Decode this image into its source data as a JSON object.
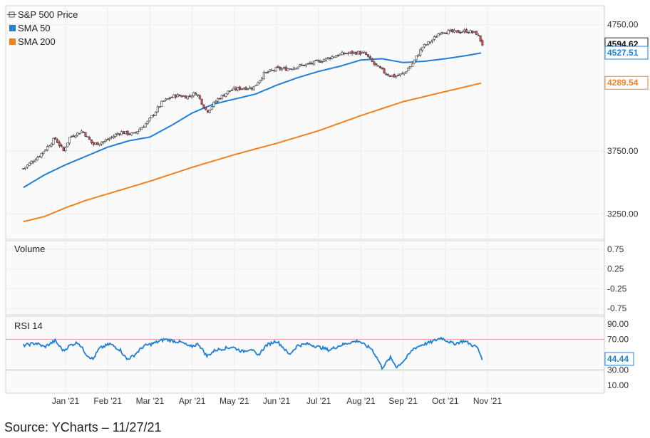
{
  "source": "Source: YCharts – 11/27/21",
  "chart_data": {
    "type": "candlestick",
    "x_tick_labels": [
      "Jan '21",
      "Feb '21",
      "Mar '21",
      "Apr '21",
      "May '21",
      "Jun '21",
      "Jul '21",
      "Aug '21",
      "Sep '21",
      "Oct '21",
      "Nov '21"
    ],
    "price_panel": {
      "y_ticks": [
        "4750.00",
        "3750.00",
        "3250.00"
      ],
      "ylim": [
        3050,
        4900
      ],
      "legend": [
        {
          "name": "S&P 500 Price",
          "icon": "crosshair-icon",
          "color": "#555555"
        },
        {
          "name": "SMA 50",
          "color": "#1f7fd8"
        },
        {
          "name": "SMA 200",
          "color": "#f0821e"
        }
      ],
      "last_values": {
        "price": "4594.62",
        "sma50": "4527.51",
        "sma200": "4289.54"
      },
      "up_color": "#ffffff",
      "down_color": "#e8484e",
      "price_anchors": [
        {
          "m": 0,
          "v": 3610
        },
        {
          "m": 0.4,
          "v": 3720
        },
        {
          "m": 0.75,
          "v": 3850
        },
        {
          "m": 0.95,
          "v": 3750
        },
        {
          "m": 1.1,
          "v": 3860
        },
        {
          "m": 1.4,
          "v": 3910
        },
        {
          "m": 1.65,
          "v": 3800
        },
        {
          "m": 1.95,
          "v": 3830
        },
        {
          "m": 2.3,
          "v": 3900
        },
        {
          "m": 2.6,
          "v": 3880
        },
        {
          "m": 2.95,
          "v": 3980
        },
        {
          "m": 3.3,
          "v": 4140
        },
        {
          "m": 3.6,
          "v": 4190
        },
        {
          "m": 3.9,
          "v": 4180
        },
        {
          "m": 4.1,
          "v": 4210
        },
        {
          "m": 4.35,
          "v": 4060
        },
        {
          "m": 4.6,
          "v": 4160
        },
        {
          "m": 4.9,
          "v": 4230
        },
        {
          "m": 5.2,
          "v": 4250
        },
        {
          "m": 5.45,
          "v": 4250
        },
        {
          "m": 5.7,
          "v": 4360
        },
        {
          "m": 6,
          "v": 4400
        },
        {
          "m": 6.25,
          "v": 4400
        },
        {
          "m": 6.5,
          "v": 4420
        },
        {
          "m": 6.8,
          "v": 4440
        },
        {
          "m": 7.1,
          "v": 4470
        },
        {
          "m": 7.35,
          "v": 4500
        },
        {
          "m": 7.6,
          "v": 4520
        },
        {
          "m": 7.9,
          "v": 4530
        },
        {
          "m": 8.1,
          "v": 4520
        },
        {
          "m": 8.3,
          "v": 4440
        },
        {
          "m": 8.6,
          "v": 4360
        },
        {
          "m": 8.8,
          "v": 4340
        },
        {
          "m": 9,
          "v": 4360
        },
        {
          "m": 9.2,
          "v": 4430
        },
        {
          "m": 9.45,
          "v": 4570
        },
        {
          "m": 9.7,
          "v": 4630
        },
        {
          "m": 9.9,
          "v": 4700
        },
        {
          "m": 10.2,
          "v": 4690
        },
        {
          "m": 10.5,
          "v": 4700
        },
        {
          "m": 10.75,
          "v": 4680
        },
        {
          "m": 10.88,
          "v": 4594.62
        }
      ],
      "sma50_anchors": [
        {
          "m": 0,
          "v": 3460
        },
        {
          "m": 0.5,
          "v": 3560
        },
        {
          "m": 1,
          "v": 3640
        },
        {
          "m": 1.5,
          "v": 3710
        },
        {
          "m": 2,
          "v": 3780
        },
        {
          "m": 2.5,
          "v": 3830
        },
        {
          "m": 3,
          "v": 3860
        },
        {
          "m": 3.5,
          "v": 3950
        },
        {
          "m": 4,
          "v": 4050
        },
        {
          "m": 4.5,
          "v": 4120
        },
        {
          "m": 5,
          "v": 4160
        },
        {
          "m": 5.5,
          "v": 4200
        },
        {
          "m": 6,
          "v": 4270
        },
        {
          "m": 6.5,
          "v": 4330
        },
        {
          "m": 7,
          "v": 4380
        },
        {
          "m": 7.5,
          "v": 4420
        },
        {
          "m": 8,
          "v": 4470
        },
        {
          "m": 8.5,
          "v": 4480
        },
        {
          "m": 9,
          "v": 4450
        },
        {
          "m": 9.5,
          "v": 4460
        },
        {
          "m": 10,
          "v": 4480
        },
        {
          "m": 10.5,
          "v": 4505
        },
        {
          "m": 10.88,
          "v": 4527.51
        }
      ],
      "sma200_anchors": [
        {
          "m": 0,
          "v": 3190
        },
        {
          "m": 0.5,
          "v": 3230
        },
        {
          "m": 1,
          "v": 3300
        },
        {
          "m": 1.5,
          "v": 3360
        },
        {
          "m": 2,
          "v": 3410
        },
        {
          "m": 3,
          "v": 3510
        },
        {
          "m": 4,
          "v": 3620
        },
        {
          "m": 5,
          "v": 3720
        },
        {
          "m": 6,
          "v": 3810
        },
        {
          "m": 7,
          "v": 3910
        },
        {
          "m": 8,
          "v": 4030
        },
        {
          "m": 9,
          "v": 4140
        },
        {
          "m": 10,
          "v": 4220
        },
        {
          "m": 10.88,
          "v": 4289.54
        }
      ]
    },
    "volume_panel": {
      "title": "Volume",
      "y_ticks": [
        "0.75",
        "0.25",
        "-0.25",
        "-0.75"
      ]
    },
    "rsi_panel": {
      "title": "RSI 14",
      "y_ticks": [
        "90.00",
        "70.00",
        "30.00",
        "10.00"
      ],
      "ylim": [
        0,
        100
      ],
      "overbought": 70,
      "oversold": 30,
      "last_value": "44.44",
      "color": "#1f7fd8",
      "anchors": [
        {
          "m": 0,
          "v": 62
        },
        {
          "m": 0.3,
          "v": 65
        },
        {
          "m": 0.5,
          "v": 60
        },
        {
          "m": 0.75,
          "v": 68
        },
        {
          "m": 0.95,
          "v": 55
        },
        {
          "m": 1.1,
          "v": 62
        },
        {
          "m": 1.3,
          "v": 66
        },
        {
          "m": 1.5,
          "v": 50
        },
        {
          "m": 1.65,
          "v": 44
        },
        {
          "m": 1.8,
          "v": 58
        },
        {
          "m": 2.05,
          "v": 64
        },
        {
          "m": 2.3,
          "v": 56
        },
        {
          "m": 2.45,
          "v": 44
        },
        {
          "m": 2.6,
          "v": 48
        },
        {
          "m": 2.85,
          "v": 61
        },
        {
          "m": 3.1,
          "v": 65
        },
        {
          "m": 3.35,
          "v": 70
        },
        {
          "m": 3.55,
          "v": 68
        },
        {
          "m": 3.75,
          "v": 66
        },
        {
          "m": 3.95,
          "v": 60
        },
        {
          "m": 4.15,
          "v": 64
        },
        {
          "m": 4.35,
          "v": 48
        },
        {
          "m": 4.55,
          "v": 56
        },
        {
          "m": 4.75,
          "v": 58
        },
        {
          "m": 4.95,
          "v": 60
        },
        {
          "m": 5.2,
          "v": 54
        },
        {
          "m": 5.4,
          "v": 58
        },
        {
          "m": 5.55,
          "v": 48
        },
        {
          "m": 5.75,
          "v": 62
        },
        {
          "m": 6,
          "v": 68
        },
        {
          "m": 6.15,
          "v": 60
        },
        {
          "m": 6.3,
          "v": 50
        },
        {
          "m": 6.5,
          "v": 62
        },
        {
          "m": 6.75,
          "v": 64
        },
        {
          "m": 7,
          "v": 60
        },
        {
          "m": 7.25,
          "v": 56
        },
        {
          "m": 7.5,
          "v": 62
        },
        {
          "m": 7.75,
          "v": 66
        },
        {
          "m": 7.95,
          "v": 68
        },
        {
          "m": 8.1,
          "v": 62
        },
        {
          "m": 8.25,
          "v": 58
        },
        {
          "m": 8.4,
          "v": 44
        },
        {
          "m": 8.5,
          "v": 33
        },
        {
          "m": 8.7,
          "v": 46
        },
        {
          "m": 8.85,
          "v": 34
        },
        {
          "m": 9.05,
          "v": 44
        },
        {
          "m": 9.25,
          "v": 58
        },
        {
          "m": 9.45,
          "v": 63
        },
        {
          "m": 9.65,
          "v": 66
        },
        {
          "m": 9.9,
          "v": 72
        },
        {
          "m": 10.2,
          "v": 64
        },
        {
          "m": 10.45,
          "v": 68
        },
        {
          "m": 10.65,
          "v": 62
        },
        {
          "m": 10.75,
          "v": 60
        },
        {
          "m": 10.88,
          "v": 44.44
        }
      ]
    }
  }
}
